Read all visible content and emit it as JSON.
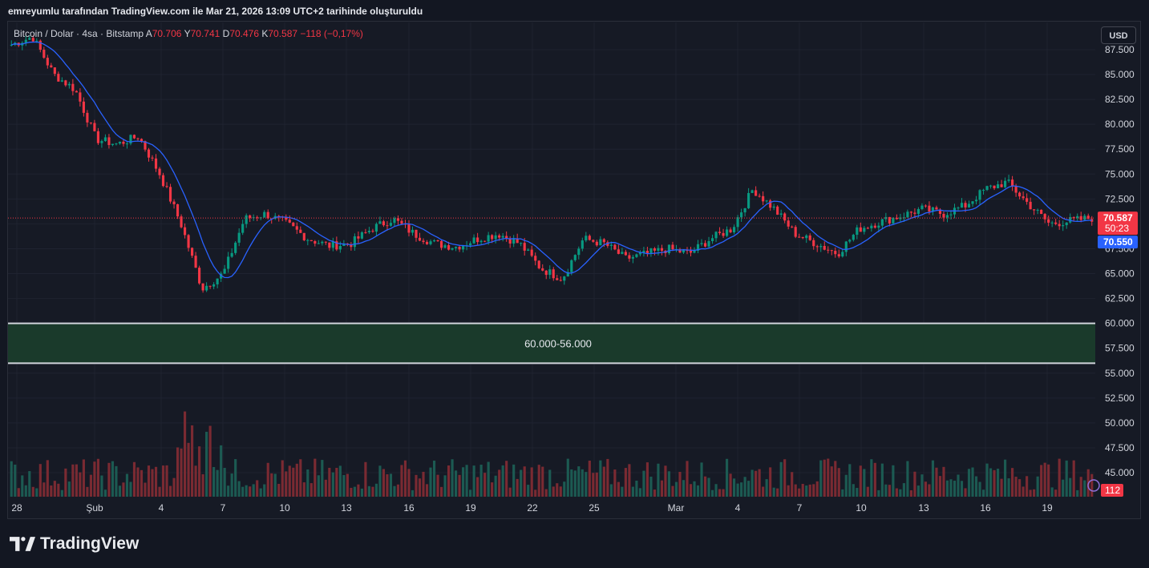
{
  "caption": "emreyumlu tarafından TradingView.com ile Mar 21, 2026 13:09 UTC+2 tarihinde oluşturuldu",
  "legend": {
    "symbol": "Bitcoin / Dolar · 4sa · Bitstamp",
    "open_label": "A",
    "open": "70.706",
    "high_label": "Y",
    "high": "70.741",
    "low_label": "D",
    "low": "70.476",
    "close_label": "K",
    "close": "70.587",
    "change": "−118 (−0,17%)"
  },
  "currency_button": "USD",
  "brand": "TradingView",
  "colors": {
    "background": "#161a25",
    "up": "#089981",
    "down": "#f23645",
    "ma_line": "#2962ff",
    "zone_fill": "#1a3a2b",
    "zone_border": "#d1d4dc"
  },
  "chart_data": {
    "type": "candlestick",
    "title": "Bitcoin / Dolar · 4sa · Bitstamp",
    "ylim": [
      42000,
      89000
    ],
    "y_ticks": [
      "87.500",
      "85.000",
      "82.500",
      "80.000",
      "77.500",
      "75.000",
      "72.500",
      "70.000",
      "67.500",
      "65.000",
      "62.500",
      "60.000",
      "57.500",
      "55.000",
      "52.500",
      "50.000",
      "47.500",
      "45.000"
    ],
    "x_ticks": [
      "28",
      "Şub",
      "4",
      "7",
      "10",
      "13",
      "16",
      "19",
      "22",
      "25",
      "Mar",
      "4",
      "7",
      "10",
      "13",
      "16",
      "19"
    ],
    "price_key_points": [
      {
        "x": "28",
        "y": 88000
      },
      {
        "x": "29",
        "y": 88800
      },
      {
        "x": "30",
        "y": 85000
      },
      {
        "x": "31",
        "y": 83500
      },
      {
        "x": "Şub",
        "y": 78500
      },
      {
        "x": "2",
        "y": 78000
      },
      {
        "x": "3",
        "y": 78800
      },
      {
        "x": "4",
        "y": 75000
      },
      {
        "x": "5",
        "y": 70000
      },
      {
        "x": "6",
        "y": 63500
      },
      {
        "x": "6.5",
        "y": 65000
      },
      {
        "x": "7",
        "y": 70500
      },
      {
        "x": "9",
        "y": 71000
      },
      {
        "x": "10",
        "y": 70000
      },
      {
        "x": "11",
        "y": 68500
      },
      {
        "x": "12",
        "y": 67800
      },
      {
        "x": "13",
        "y": 68000
      },
      {
        "x": "14",
        "y": 69500
      },
      {
        "x": "15",
        "y": 70500
      },
      {
        "x": "16",
        "y": 69000
      },
      {
        "x": "18",
        "y": 68000
      },
      {
        "x": "19",
        "y": 67700
      },
      {
        "x": "20",
        "y": 68500
      },
      {
        "x": "21",
        "y": 69000
      },
      {
        "x": "22",
        "y": 68000
      },
      {
        "x": "23",
        "y": 65500
      },
      {
        "x": "24",
        "y": 64500
      },
      {
        "x": "25",
        "y": 68500
      },
      {
        "x": "26",
        "y": 68000
      },
      {
        "x": "27",
        "y": 66500
      },
      {
        "x": "28",
        "y": 67000
      },
      {
        "x": "Mar",
        "y": 67500
      },
      {
        "x": "2",
        "y": 67000
      },
      {
        "x": "3",
        "y": 68500
      },
      {
        "x": "4",
        "y": 69500
      },
      {
        "x": "5",
        "y": 73500
      },
      {
        "x": "6",
        "y": 71500
      },
      {
        "x": "7",
        "y": 69000
      },
      {
        "x": "8",
        "y": 68000
      },
      {
        "x": "9",
        "y": 67000
      },
      {
        "x": "10",
        "y": 69500
      },
      {
        "x": "11",
        "y": 70200
      },
      {
        "x": "12",
        "y": 70800
      },
      {
        "x": "13",
        "y": 71500
      },
      {
        "x": "14",
        "y": 71000
      },
      {
        "x": "15",
        "y": 71800
      },
      {
        "x": "16",
        "y": 73500
      },
      {
        "x": "17",
        "y": 74200
      },
      {
        "x": "18",
        "y": 72000
      },
      {
        "x": "19",
        "y": 70000
      },
      {
        "x": "20",
        "y": 70300
      },
      {
        "x": "21",
        "y": 70587
      }
    ],
    "current_price_label": "70.587",
    "countdown_label": "50:23",
    "ma_price_label": "70.550",
    "volume_label": "112",
    "zone": {
      "top": 60000,
      "bottom": 56000,
      "label": "60.000-56.000"
    }
  }
}
